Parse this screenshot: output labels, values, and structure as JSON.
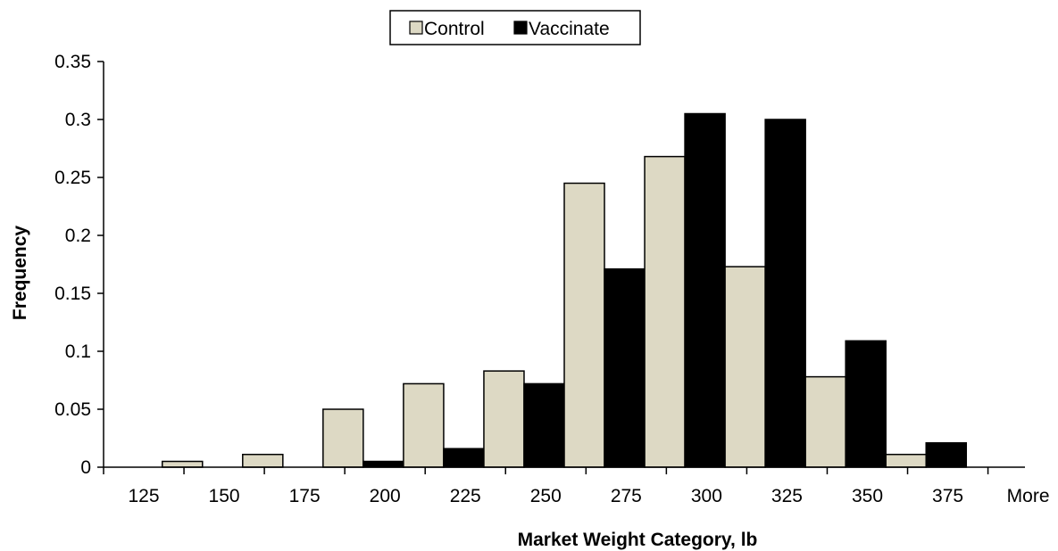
{
  "chart_data": {
    "type": "bar",
    "title": "",
    "xlabel": "Market Weight Category, lb",
    "ylabel": "Frequency",
    "categories": [
      "125",
      "150",
      "175",
      "200",
      "225",
      "250",
      "275",
      "300",
      "325",
      "350",
      "375",
      "More"
    ],
    "ylim": [
      0,
      0.35
    ],
    "yticks": [
      "0",
      "0.05",
      "0.1",
      "0.15",
      "0.2",
      "0.25",
      "0.3",
      "0.35"
    ],
    "grid": false,
    "legend_position": "top-center",
    "series": [
      {
        "name": "Control",
        "color": "#ddd9c4",
        "values": [
          0,
          0.005,
          0.011,
          0.05,
          0.072,
          0.083,
          0.245,
          0.268,
          0.173,
          0.078,
          0.011,
          0
        ]
      },
      {
        "name": "Vaccinate",
        "color": "#000000",
        "values": [
          0,
          0,
          0,
          0.005,
          0.016,
          0.072,
          0.171,
          0.305,
          0.3,
          0.109,
          0.021,
          0
        ]
      }
    ]
  }
}
